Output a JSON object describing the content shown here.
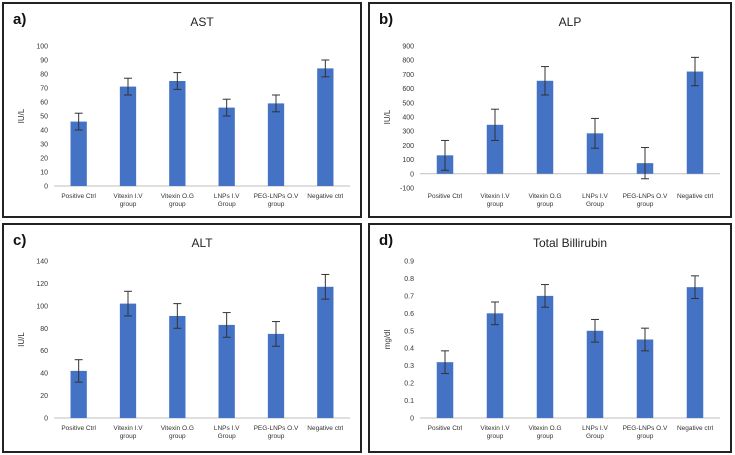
{
  "chart_data": [
    {
      "type": "bar",
      "panel_label": "a)",
      "title": "AST",
      "ylabel": "IU/L",
      "xlabel": "",
      "ylim": [
        0,
        100
      ],
      "yticks": [
        "0",
        "10",
        "20",
        "30",
        "40",
        "50",
        "60",
        "70",
        "80",
        "90",
        "100"
      ],
      "bar_color": "#4472c4",
      "categories": [
        [
          "Positive Ctrl"
        ],
        [
          "Vitexin I.V",
          "group"
        ],
        [
          "Vitexin O.G",
          "group"
        ],
        [
          "LNPs I.V",
          "Group"
        ],
        [
          "PEG-LNPs O.V",
          "group"
        ],
        [
          "Negative ctrl"
        ]
      ],
      "values": [
        46,
        71,
        75,
        56,
        59,
        84
      ],
      "errors": [
        6,
        6,
        6,
        6,
        6,
        6
      ]
    },
    {
      "type": "bar",
      "panel_label": "b)",
      "title": "ALP",
      "ylabel": "IU/L",
      "xlabel": "",
      "ylim": [
        -100,
        900
      ],
      "yticks": [
        "-100",
        "0",
        "100",
        "200",
        "300",
        "400",
        "500",
        "600",
        "700",
        "800",
        "900"
      ],
      "bar_color": "#4472c4",
      "categories": [
        [
          "Positive Ctrl"
        ],
        [
          "Vitexin I.V",
          "group"
        ],
        [
          "Vitexin O.G",
          "group"
        ],
        [
          "LNPs I.V",
          "Group"
        ],
        [
          "PEG-LNPs O.V",
          "group"
        ],
        [
          "Negative ctrl"
        ]
      ],
      "values": [
        130,
        345,
        655,
        285,
        75,
        720
      ],
      "errors": [
        105,
        110,
        100,
        105,
        110,
        100
      ]
    },
    {
      "type": "bar",
      "panel_label": "c)",
      "title": "ALT",
      "ylabel": "IU/L",
      "xlabel": "",
      "ylim": [
        0,
        140
      ],
      "yticks": [
        "0",
        "20",
        "40",
        "60",
        "80",
        "100",
        "120",
        "140"
      ],
      "bar_color": "#4472c4",
      "categories": [
        [
          "Positive Ctrl"
        ],
        [
          "Vitexin I.V",
          "group"
        ],
        [
          "Vitexin O.G",
          "group"
        ],
        [
          "LNPs I.V",
          "Group"
        ],
        [
          "PEG-LNPs O.V",
          "group"
        ],
        [
          "Negative ctrl"
        ]
      ],
      "values": [
        42,
        102,
        91,
        83,
        75,
        117
      ],
      "errors": [
        10,
        11,
        11,
        11,
        11,
        11
      ]
    },
    {
      "type": "bar",
      "panel_label": "d)",
      "title": "Total Billirubin",
      "ylabel": "mg/dl",
      "xlabel": "",
      "ylim": [
        0,
        0.9
      ],
      "yticks": [
        "0",
        "0.1",
        "0.2",
        "0.3",
        "0.4",
        "0.5",
        "0.6",
        "0.7",
        "0.8",
        "0.9"
      ],
      "bar_color": "#4472c4",
      "categories": [
        [
          "Positive Ctrl"
        ],
        [
          "Vitexin I.V",
          "group"
        ],
        [
          "Vitexin O.G",
          "group"
        ],
        [
          "LNPs I.V",
          "Group"
        ],
        [
          "PEG-LNPs O.V",
          "group"
        ],
        [
          "Negative ctrl"
        ]
      ],
      "values": [
        0.32,
        0.6,
        0.7,
        0.5,
        0.45,
        0.75
      ],
      "errors": [
        0.065,
        0.065,
        0.065,
        0.065,
        0.065,
        0.065
      ]
    }
  ]
}
